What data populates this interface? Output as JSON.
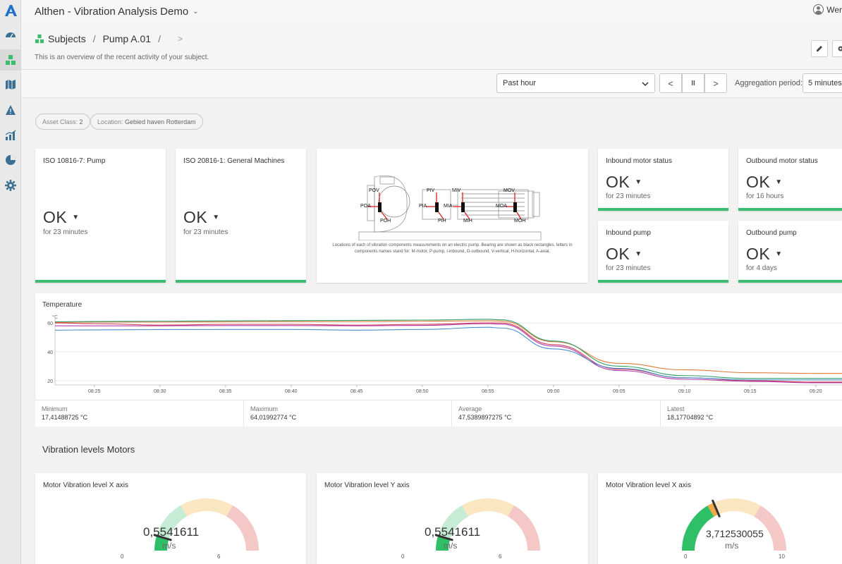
{
  "app": {
    "title": "Althen - Vibration Analysis Demo",
    "user": "Wer"
  },
  "breadcrumb": {
    "root": "Subjects",
    "current": "Pump A.01",
    "sep1": "/",
    "sep2": "/",
    "next": ">"
  },
  "subtitle": "This is an overview of the recent activity of your subject.",
  "time": {
    "range": "Past hour",
    "prev": "<",
    "pause": "II",
    "next": ">",
    "agg_label": "Aggregation period:",
    "agg_value": "5 minutes"
  },
  "tags": [
    {
      "label": "Asset Class:",
      "value": "2"
    },
    {
      "label": "Location:",
      "value": "Gebied haven Rotterdam"
    }
  ],
  "status_cards": {
    "iso10816": {
      "title": "ISO 10816-7: Pump",
      "status": "OK",
      "duration": "for 23 minutes"
    },
    "iso20816": {
      "title": "ISO 20816-1: General Machines",
      "status": "OK",
      "duration": "for 23 minutes"
    },
    "inbound_motor": {
      "title": "Inbound motor status",
      "status": "OK",
      "duration": "for 23 minutes"
    },
    "outbound_motor": {
      "title": "Outbound motor status",
      "status": "OK",
      "duration": "for 16 hours"
    },
    "inbound_pump": {
      "title": "Inbound pump",
      "status": "OK",
      "duration": "for 23 minutes"
    },
    "outbound_pump": {
      "title": "Outbound pump",
      "status": "OK",
      "duration": "for 4 days"
    }
  },
  "diagram": {
    "labels": [
      "POV",
      "POA",
      "POH",
      "PIV",
      "PIA",
      "PIH",
      "MIV",
      "MIA",
      "MIH",
      "MOV",
      "MOA",
      "MOH"
    ],
    "caption": "Locations of each of vibration components measurements on an electric pump. Bearing are shown as black rectangles. letters in components names stand for: M-motor, P-pump, I-inbound, O-outbound, V-vertical, H-horizontal, A-axial."
  },
  "temperature": {
    "title": "Temperature",
    "unit": "°C",
    "stats": [
      {
        "label": "Minimum",
        "value": "17,41488725 °C"
      },
      {
        "label": "Maximum",
        "value": "64,01992774 °C"
      },
      {
        "label": "Average",
        "value": "47,5389897275 °C"
      },
      {
        "label": "Latest",
        "value": "18,17704892 °C"
      }
    ]
  },
  "chart_data": {
    "type": "line",
    "title": "Temperature",
    "ylabel": "°C",
    "ylim": [
      18,
      62
    ],
    "yticks": [
      "20",
      "40",
      "60"
    ],
    "x": [
      "08:22",
      "08:25",
      "08:30",
      "08:35",
      "08:40",
      "08:45",
      "08:50",
      "08:55",
      "08:56",
      "09:00",
      "09:05",
      "09:10",
      "09:15",
      "09:20",
      "09:22"
    ],
    "xticks": [
      "08:25",
      "08:30",
      "08:35",
      "08:40",
      "08:45",
      "08:50",
      "08:55",
      "09:00",
      "09:05",
      "09:10",
      "09:15",
      "09:20"
    ],
    "series": [
      {
        "color": "#e07b39",
        "values": [
          60.5,
          60.6,
          60.6,
          60.8,
          61,
          61,
          61.2,
          61.5,
          61.3,
          47,
          32,
          27.5,
          25.5,
          25,
          25
        ]
      },
      {
        "color": "#2e9e6a",
        "values": [
          60.8,
          61,
          61.2,
          61.5,
          61.6,
          61.8,
          62,
          62.5,
          62.2,
          47.5,
          30,
          23.5,
          21.5,
          21.5,
          21.5
        ]
      },
      {
        "color": "#d33a4b",
        "values": [
          60,
          59.5,
          58.5,
          59,
          59,
          58.5,
          59,
          60,
          60,
          45,
          28,
          22,
          20,
          19,
          19
        ]
      },
      {
        "color": "#b03ab0",
        "values": [
          58,
          58,
          58,
          58.2,
          58.2,
          58,
          58.3,
          59.5,
          59.2,
          44,
          27,
          21,
          19.5,
          18.5,
          18.5
        ]
      },
      {
        "color": "#4a8fd4",
        "values": [
          55,
          55.2,
          55.4,
          55.5,
          55.5,
          55,
          55.5,
          57,
          56.5,
          42,
          28.5,
          22,
          20.5,
          20.5,
          20.5
        ]
      }
    ]
  },
  "vibration": {
    "section_title": "Vibration levels Motors",
    "gauges": [
      {
        "title": "Motor Vibration level X axis",
        "value": 0.5541611,
        "display": "0,5541611",
        "unit": "m/s",
        "min": "0",
        "max": "6",
        "min_num": 0,
        "max_num": 6,
        "green_to": 2,
        "amber_to": 4
      },
      {
        "title": "Motor Vibration level Y axis",
        "value": 0.5541611,
        "display": "0,5541611",
        "unit": "m/s",
        "min": "0",
        "max": "6",
        "min_num": 0,
        "max_num": 6,
        "green_to": 2,
        "amber_to": 4
      },
      {
        "title": "Motor Vibration level X axis",
        "value": 3.712530055,
        "display": "3,712530055",
        "unit": "m/s",
        "min": "0",
        "max": "10",
        "min_num": 0,
        "max_num": 10,
        "green_to": 3.3,
        "amber_to": 6.7
      }
    ]
  },
  "colors": {
    "ok_green": "#3dbb6e",
    "brand_blue": "#1f6fd1",
    "gauge_green": "#2fbf66",
    "gauge_amber": "#f2a94a"
  },
  "icons": [
    "dashboard-icon",
    "subjects-icon",
    "map-icon",
    "alert-icon",
    "analytics-icon",
    "reports-icon",
    "settings-icon",
    "edit-icon",
    "gear-icon"
  ]
}
